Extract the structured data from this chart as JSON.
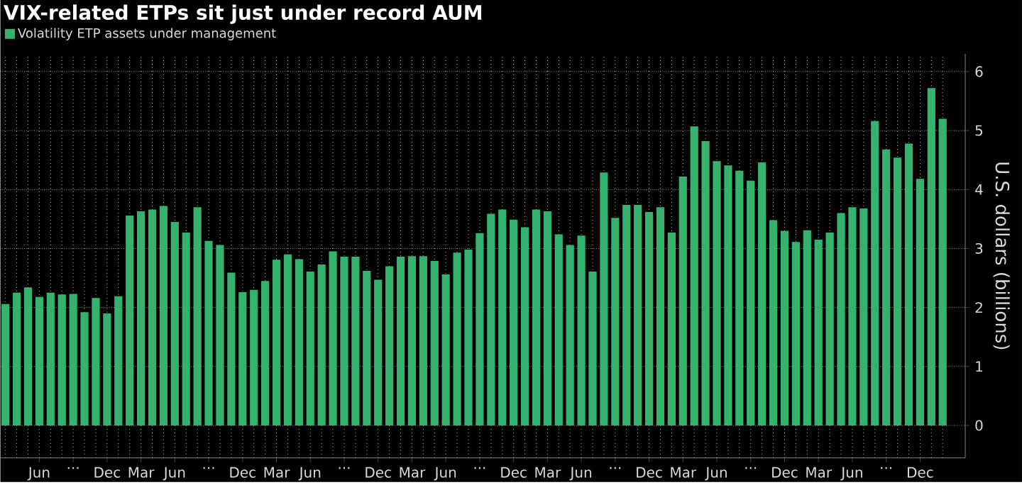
{
  "chart_data": {
    "type": "bar",
    "title": "VIX-related ETPs sit just under record AUM",
    "ylabel": "U.S. dollars (billions)",
    "categories": [
      null,
      null,
      null,
      "Jun",
      null,
      null,
      "...",
      null,
      null,
      "Dec",
      null,
      null,
      "Mar",
      null,
      null,
      "Jun",
      null,
      null,
      "...",
      null,
      null,
      "Dec",
      null,
      null,
      "Mar",
      null,
      null,
      "Jun",
      null,
      null,
      "...",
      null,
      null,
      "Dec",
      null,
      null,
      "Mar",
      null,
      null,
      "Jun",
      null,
      null,
      "...",
      null,
      null,
      "Dec",
      null,
      null,
      "Mar",
      null,
      null,
      "Jun",
      null,
      null,
      "...",
      null,
      null,
      "Dec",
      null,
      null,
      "Mar",
      null,
      null,
      "Jun",
      null,
      null,
      "...",
      null,
      null,
      "Dec",
      null,
      null,
      "Mar",
      null,
      null,
      "Jun",
      null,
      null,
      "...",
      null,
      null,
      "Dec",
      null,
      null
    ],
    "series": [
      {
        "name": "Volatility ETP assets under management",
        "color": "#35b36e",
        "values": [
          2.06,
          2.25,
          2.34,
          2.18,
          2.25,
          2.22,
          2.23,
          1.92,
          2.16,
          1.9,
          2.19,
          3.56,
          3.63,
          3.66,
          3.72,
          3.45,
          3.27,
          3.7,
          3.13,
          3.06,
          2.59,
          2.26,
          2.3,
          2.45,
          2.81,
          2.9,
          2.82,
          2.61,
          2.73,
          2.95,
          2.86,
          2.86,
          2.62,
          2.47,
          2.7,
          2.86,
          2.87,
          2.87,
          2.79,
          2.56,
          2.93,
          2.98,
          3.26,
          3.59,
          3.66,
          3.49,
          3.36,
          3.66,
          3.63,
          3.24,
          3.06,
          3.22,
          2.61,
          4.29,
          3.52,
          3.74,
          3.74,
          3.62,
          3.7,
          3.27,
          4.22,
          5.07,
          4.82,
          4.48,
          4.41,
          4.32,
          4.15,
          4.46,
          3.48,
          3.3,
          3.11,
          3.31,
          3.15,
          3.27,
          3.6,
          3.7,
          3.68,
          5.16,
          4.68,
          4.54,
          4.78,
          4.18,
          5.72,
          5.2
        ]
      }
    ],
    "ylim": [
      -0.55,
      6.3
    ],
    "yticks": [
      0,
      1,
      2,
      3,
      4,
      5,
      6
    ],
    "grid": true,
    "legend": "top left"
  }
}
